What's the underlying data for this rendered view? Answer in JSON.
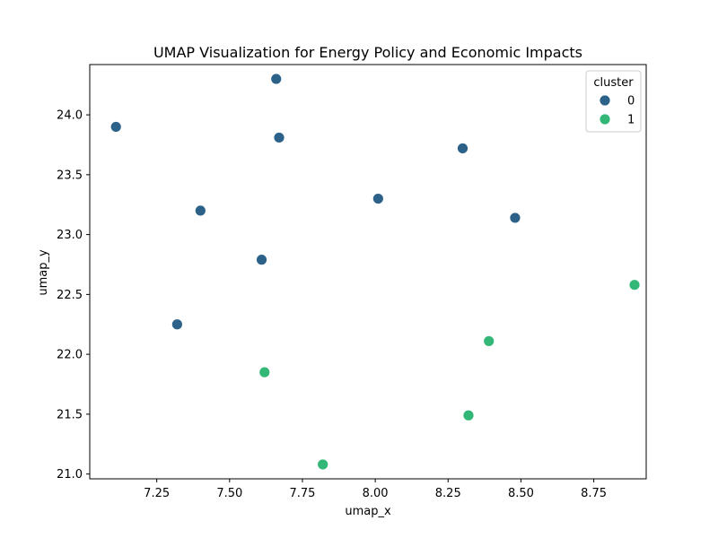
{
  "chart_data": {
    "type": "scatter",
    "title": "UMAP Visualization for Energy Policy and Economic Impacts",
    "xlabel": "umap_x",
    "ylabel": "umap_y",
    "xlim": [
      7.02,
      8.93
    ],
    "ylim": [
      20.96,
      24.42
    ],
    "xticks": [
      7.25,
      7.5,
      7.75,
      8.0,
      8.25,
      8.5,
      8.75
    ],
    "xtick_labels": [
      "7.25",
      "7.50",
      "7.75",
      "8.00",
      "8.25",
      "8.50",
      "8.75"
    ],
    "yticks": [
      21.0,
      21.5,
      22.0,
      22.5,
      23.0,
      23.5,
      24.0
    ],
    "ytick_labels": [
      "21.0",
      "21.5",
      "22.0",
      "22.5",
      "23.0",
      "23.5",
      "24.0"
    ],
    "grid": false,
    "legend": {
      "title": "cluster",
      "position": "top-right"
    },
    "series": [
      {
        "name": "0",
        "color": "#2c628a",
        "points": [
          {
            "x": 7.66,
            "y": 24.3
          },
          {
            "x": 7.11,
            "y": 23.9
          },
          {
            "x": 7.67,
            "y": 23.81
          },
          {
            "x": 8.3,
            "y": 23.72
          },
          {
            "x": 8.01,
            "y": 23.3
          },
          {
            "x": 7.4,
            "y": 23.2
          },
          {
            "x": 8.48,
            "y": 23.14
          },
          {
            "x": 7.61,
            "y": 22.79
          },
          {
            "x": 7.32,
            "y": 22.25
          }
        ]
      },
      {
        "name": "1",
        "color": "#32b777",
        "points": [
          {
            "x": 8.89,
            "y": 22.58
          },
          {
            "x": 8.39,
            "y": 22.11
          },
          {
            "x": 7.62,
            "y": 21.85
          },
          {
            "x": 8.32,
            "y": 21.49
          },
          {
            "x": 7.82,
            "y": 21.08
          }
        ]
      }
    ]
  }
}
